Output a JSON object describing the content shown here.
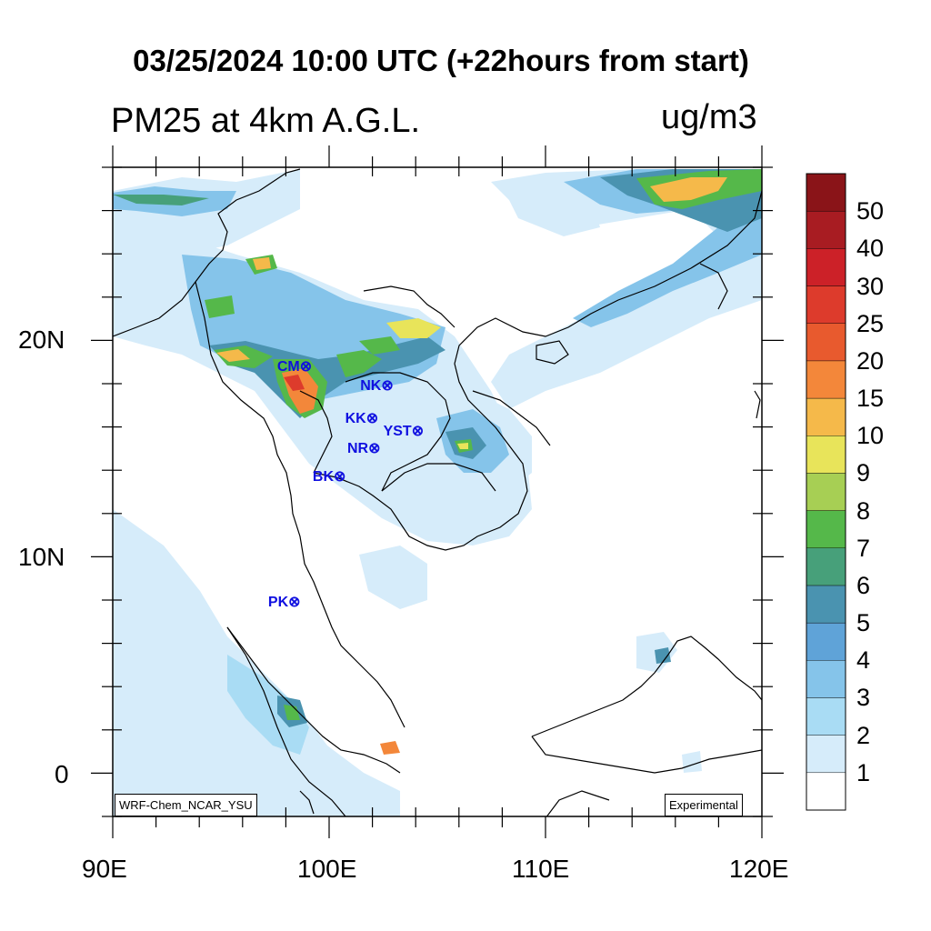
{
  "header": {
    "title": "03/25/2024 10:00 UTC (+22hours from start)",
    "field": "PM25 at 4km A.G.L.",
    "unit": "ug/m3"
  },
  "map": {
    "lon_range": [
      90,
      120
    ],
    "lat_range": [
      -2,
      28
    ],
    "x_tick_labels": [
      "90E",
      "100E",
      "110E",
      "120E"
    ],
    "y_tick_labels": [
      "20N",
      "10N",
      "0"
    ],
    "model_tag": "WRF-Chem_NCAR_YSU",
    "status_tag": "Experimental",
    "stations": [
      {
        "label": "CM",
        "lon": 98.9,
        "lat": 18.8
      },
      {
        "label": "NK",
        "lon": 102.7,
        "lat": 17.9
      },
      {
        "label": "KK",
        "lon": 102.0,
        "lat": 16.4
      },
      {
        "label": "YST",
        "lon": 104.1,
        "lat": 15.8
      },
      {
        "label": "NR",
        "lon": 102.1,
        "lat": 15.0
      },
      {
        "label": "BK",
        "lon": 100.5,
        "lat": 13.7
      },
      {
        "label": "PK",
        "lon": 98.4,
        "lat": 7.9
      }
    ]
  },
  "colorbar": {
    "levels": [
      "1",
      "2",
      "3",
      "4",
      "5",
      "6",
      "7",
      "8",
      "9",
      "10",
      "15",
      "20",
      "25",
      "30",
      "40",
      "50"
    ],
    "colors": [
      "#ffffff",
      "#d6ecfa",
      "#a9dcf4",
      "#85c4ea",
      "#5fa3d8",
      "#4a93b0",
      "#47a07a",
      "#55b84a",
      "#a7cf54",
      "#e8e45a",
      "#f5b94a",
      "#f3873a",
      "#e85a2e",
      "#dd3b2c",
      "#cc2128",
      "#a81c22",
      "#8a1418"
    ]
  }
}
